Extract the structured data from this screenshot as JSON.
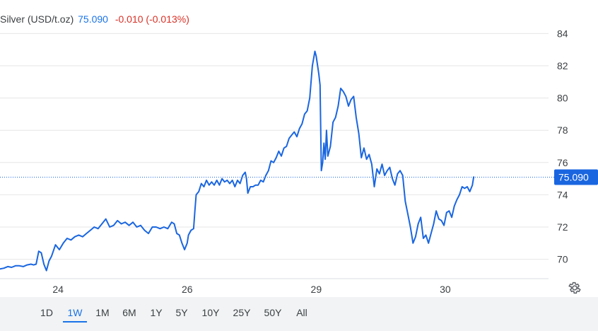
{
  "header": {
    "title": "Silver (USD/t.oz)",
    "price": "75.090",
    "change": "-0.010 (-0.013%)"
  },
  "colors": {
    "line": "#1a66e0",
    "price_text": "#1a73e8",
    "change_text": "#d93025",
    "grid": "#e6e6e6",
    "label": "#3c4043",
    "badge_bg": "#1a66e0",
    "badge_text": "#ffffff"
  },
  "range_tabs": [
    "1D",
    "1W",
    "1M",
    "6M",
    "1Y",
    "5Y",
    "10Y",
    "25Y",
    "50Y",
    "All"
  ],
  "active_range": "1W",
  "settings_icon": "gear-icon",
  "chart_data": {
    "type": "line",
    "title": "Silver (USD/t.oz)",
    "xlabel": "",
    "ylabel": "",
    "ylim": [
      68.8,
      85.2
    ],
    "yticks": [
      70,
      72,
      74,
      76,
      78,
      80,
      82,
      84
    ],
    "xticks": [
      {
        "label": "24",
        "x": 1.0
      },
      {
        "label": "26",
        "x": 2.0
      },
      {
        "label": "29",
        "x": 3.0
      },
      {
        "label": "30",
        "x": 4.0
      }
    ],
    "xlim": [
      0.55,
      4.8
    ],
    "grid": true,
    "y_axis_side": "right",
    "current_value_line": 75.09,
    "current_value_label": "75.090",
    "series": [
      {
        "points": [
          [
            0.55,
            69.4
          ],
          [
            0.58,
            69.45
          ],
          [
            0.61,
            69.55
          ],
          [
            0.64,
            69.5
          ],
          [
            0.67,
            69.6
          ],
          [
            0.7,
            69.6
          ],
          [
            0.73,
            69.55
          ],
          [
            0.76,
            69.65
          ],
          [
            0.79,
            69.7
          ],
          [
            0.81,
            69.65
          ],
          [
            0.83,
            69.7
          ],
          [
            0.85,
            70.5
          ],
          [
            0.87,
            70.4
          ],
          [
            0.89,
            69.7
          ],
          [
            0.91,
            69.3
          ],
          [
            0.93,
            69.9
          ],
          [
            0.95,
            70.2
          ],
          [
            0.98,
            70.9
          ],
          [
            1.01,
            70.6
          ],
          [
            1.04,
            71.0
          ],
          [
            1.07,
            71.3
          ],
          [
            1.1,
            71.2
          ],
          [
            1.13,
            71.4
          ],
          [
            1.16,
            71.5
          ],
          [
            1.19,
            71.4
          ],
          [
            1.22,
            71.6
          ],
          [
            1.25,
            71.8
          ],
          [
            1.28,
            72.0
          ],
          [
            1.31,
            71.9
          ],
          [
            1.34,
            72.2
          ],
          [
            1.37,
            72.5
          ],
          [
            1.4,
            72.0
          ],
          [
            1.43,
            72.1
          ],
          [
            1.46,
            72.4
          ],
          [
            1.49,
            72.2
          ],
          [
            1.52,
            72.3
          ],
          [
            1.55,
            72.1
          ],
          [
            1.58,
            72.3
          ],
          [
            1.61,
            72.0
          ],
          [
            1.64,
            72.1
          ],
          [
            1.67,
            71.8
          ],
          [
            1.7,
            71.6
          ],
          [
            1.73,
            72.0
          ],
          [
            1.76,
            72.0
          ],
          [
            1.79,
            71.9
          ],
          [
            1.82,
            72.0
          ],
          [
            1.85,
            71.9
          ],
          [
            1.88,
            72.3
          ],
          [
            1.9,
            72.2
          ],
          [
            1.92,
            71.6
          ],
          [
            1.94,
            71.5
          ],
          [
            1.96,
            71.0
          ],
          [
            1.98,
            70.6
          ],
          [
            2.0,
            71.0
          ],
          [
            2.01,
            71.5
          ],
          [
            2.03,
            71.8
          ],
          [
            2.05,
            71.9
          ],
          [
            2.06,
            73.0
          ],
          [
            2.07,
            74.0
          ],
          [
            2.09,
            74.2
          ],
          [
            2.11,
            74.7
          ],
          [
            2.13,
            74.5
          ],
          [
            2.15,
            74.9
          ],
          [
            2.17,
            74.6
          ],
          [
            2.19,
            74.8
          ],
          [
            2.21,
            74.6
          ],
          [
            2.23,
            74.9
          ],
          [
            2.25,
            74.6
          ],
          [
            2.27,
            75.0
          ],
          [
            2.29,
            74.8
          ],
          [
            2.31,
            74.9
          ],
          [
            2.33,
            74.7
          ],
          [
            2.35,
            74.9
          ],
          [
            2.37,
            74.5
          ],
          [
            2.39,
            74.9
          ],
          [
            2.41,
            74.7
          ],
          [
            2.43,
            75.2
          ],
          [
            2.45,
            75.4
          ],
          [
            2.46,
            75.0
          ],
          [
            2.47,
            74.1
          ],
          [
            2.49,
            74.5
          ],
          [
            2.51,
            74.5
          ],
          [
            2.53,
            74.6
          ],
          [
            2.55,
            74.6
          ],
          [
            2.57,
            74.9
          ],
          [
            2.59,
            74.8
          ],
          [
            2.61,
            75.2
          ],
          [
            2.63,
            75.5
          ],
          [
            2.65,
            76.1
          ],
          [
            2.67,
            76.0
          ],
          [
            2.69,
            76.3
          ],
          [
            2.71,
            76.7
          ],
          [
            2.73,
            76.4
          ],
          [
            2.75,
            76.9
          ],
          [
            2.77,
            77.0
          ],
          [
            2.79,
            77.5
          ],
          [
            2.81,
            77.7
          ],
          [
            2.83,
            77.9
          ],
          [
            2.85,
            77.6
          ],
          [
            2.87,
            78.1
          ],
          [
            2.89,
            78.4
          ],
          [
            2.91,
            79.0
          ],
          [
            2.93,
            79.2
          ],
          [
            2.95,
            80.0
          ],
          [
            2.97,
            82.0
          ],
          [
            2.99,
            82.9
          ],
          [
            3.0,
            82.6
          ],
          [
            3.02,
            81.5
          ],
          [
            3.03,
            80.8
          ],
          [
            3.04,
            75.5
          ],
          [
            3.05,
            76.0
          ],
          [
            3.06,
            77.2
          ],
          [
            3.07,
            76.2
          ],
          [
            3.08,
            78.0
          ],
          [
            3.09,
            76.4
          ],
          [
            3.11,
            77.0
          ],
          [
            3.13,
            78.5
          ],
          [
            3.15,
            78.8
          ],
          [
            3.17,
            79.5
          ],
          [
            3.19,
            80.6
          ],
          [
            3.21,
            80.4
          ],
          [
            3.23,
            80.1
          ],
          [
            3.25,
            79.5
          ],
          [
            3.27,
            79.9
          ],
          [
            3.29,
            80.1
          ],
          [
            3.31,
            78.8
          ],
          [
            3.33,
            77.8
          ],
          [
            3.35,
            76.3
          ],
          [
            3.37,
            76.9
          ],
          [
            3.39,
            76.2
          ],
          [
            3.41,
            76.5
          ],
          [
            3.43,
            75.9
          ],
          [
            3.45,
            74.5
          ],
          [
            3.47,
            75.6
          ],
          [
            3.49,
            75.3
          ],
          [
            3.51,
            75.9
          ],
          [
            3.53,
            75.2
          ],
          [
            3.55,
            75.5
          ],
          [
            3.57,
            75.7
          ],
          [
            3.59,
            75.0
          ],
          [
            3.61,
            74.6
          ],
          [
            3.63,
            75.3
          ],
          [
            3.65,
            75.5
          ],
          [
            3.67,
            75.2
          ],
          [
            3.69,
            73.6
          ],
          [
            3.71,
            72.8
          ],
          [
            3.73,
            72.0
          ],
          [
            3.75,
            71.0
          ],
          [
            3.77,
            71.4
          ],
          [
            3.79,
            72.2
          ],
          [
            3.81,
            72.6
          ],
          [
            3.83,
            71.3
          ],
          [
            3.85,
            71.5
          ],
          [
            3.87,
            71.0
          ],
          [
            3.89,
            71.6
          ],
          [
            3.91,
            72.2
          ],
          [
            3.93,
            73.0
          ],
          [
            3.95,
            72.5
          ],
          [
            3.97,
            72.4
          ],
          [
            3.99,
            72.1
          ],
          [
            4.01,
            72.9
          ],
          [
            4.03,
            73.0
          ],
          [
            4.05,
            72.6
          ],
          [
            4.07,
            73.3
          ],
          [
            4.09,
            73.7
          ],
          [
            4.11,
            74.0
          ],
          [
            4.13,
            74.5
          ],
          [
            4.15,
            74.4
          ],
          [
            4.17,
            74.5
          ],
          [
            4.19,
            74.2
          ],
          [
            4.21,
            74.6
          ],
          [
            4.22,
            75.1
          ]
        ]
      }
    ]
  }
}
